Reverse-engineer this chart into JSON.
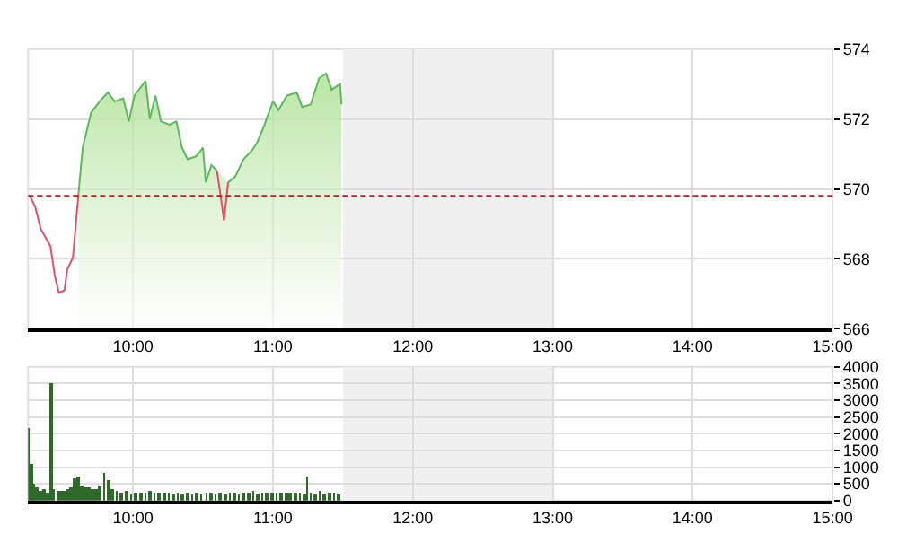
{
  "chart_data": [
    {
      "type": "area",
      "x": [
        9.26,
        9.3,
        9.34,
        9.41,
        9.44,
        9.47,
        9.51,
        9.53,
        9.57,
        9.61,
        9.64,
        9.7,
        9.76,
        9.82,
        9.87,
        9.93,
        9.97,
        10.01,
        10.09,
        10.12,
        10.16,
        10.2,
        10.26,
        10.31,
        10.35,
        10.39,
        10.45,
        10.5,
        10.52,
        10.56,
        10.6,
        10.63,
        10.65,
        10.68,
        10.73,
        10.79,
        10.85,
        10.89,
        10.94,
        11.0,
        11.04,
        11.1,
        11.17,
        11.21,
        11.27,
        11.33,
        11.38,
        11.42,
        11.48,
        11.49
      ],
      "series": [
        {
          "type": "area",
          "color": "#5cb85c",
          "values": [
            null,
            null,
            null,
            null,
            null,
            null,
            null,
            null,
            null,
            569.85,
            571.18,
            572.18,
            572.5,
            572.76,
            572.5,
            572.59,
            571.93,
            572.67,
            573.09,
            572.0,
            572.67,
            571.93,
            571.84,
            571.93,
            571.18,
            570.85,
            570.93,
            571.18,
            570.19,
            570.68,
            570.52,
            null,
            null,
            570.19,
            570.35,
            570.85,
            571.1,
            571.35,
            571.84,
            572.51,
            572.26,
            572.67,
            572.76,
            572.34,
            572.42,
            573.17,
            573.3,
            572.84,
            573.0,
            572.42
          ]
        },
        {
          "type": "line",
          "color": "#e0506a",
          "values": [
            569.82,
            569.5,
            568.86,
            568.36,
            567.53,
            567.03,
            567.1,
            567.7,
            568.03,
            569.85,
            null,
            null,
            null,
            null,
            null,
            null,
            null,
            null,
            null,
            null,
            null,
            null,
            null,
            null,
            null,
            null,
            null,
            null,
            null,
            null,
            570.52,
            569.69,
            569.1,
            570.19,
            null,
            null,
            null,
            null,
            null,
            null,
            null,
            null,
            null,
            null,
            null,
            null,
            null,
            null,
            null,
            null
          ]
        }
      ],
      "xlim": [
        9.25,
        15
      ],
      "xticks": [
        {
          "value": 10,
          "label": "10:00"
        },
        {
          "value": 11,
          "label": "11:00"
        },
        {
          "value": 12,
          "label": "12:00"
        },
        {
          "value": 13,
          "label": "13:00"
        },
        {
          "value": 14,
          "label": "14:00"
        },
        {
          "value": 15,
          "label": "15:00"
        }
      ],
      "ylim": [
        566,
        574
      ],
      "yticks": [
        566,
        568,
        570,
        572,
        574
      ],
      "ref_lines": [
        {
          "axis": "y",
          "value": 569.8,
          "color": "#ff0000",
          "line_style": "dashed"
        }
      ],
      "bands": [
        {
          "axis": "x",
          "from": 11.5,
          "to": 13,
          "color": "#f0f0f0"
        }
      ],
      "grid": true
    },
    {
      "type": "bar",
      "x": [
        9.258,
        9.275,
        9.292,
        9.317,
        9.342,
        9.367,
        9.393,
        9.414,
        9.434,
        9.46,
        9.485,
        9.51,
        9.535,
        9.56,
        9.581,
        9.606,
        9.636,
        9.661,
        9.686,
        9.711,
        9.736,
        9.762,
        9.795,
        9.824,
        9.854,
        9.887,
        9.921,
        9.954,
        9.988,
        10.021,
        10.055,
        10.089,
        10.122,
        10.155,
        10.189,
        10.223,
        10.256,
        10.29,
        10.323,
        10.357,
        10.39,
        10.424,
        10.458,
        10.491,
        10.525,
        10.558,
        10.592,
        10.625,
        10.659,
        10.692,
        10.726,
        10.759,
        10.793,
        10.827,
        10.86,
        10.894,
        10.927,
        10.961,
        10.994,
        11.028,
        11.061,
        11.095,
        11.128,
        11.162,
        11.195,
        11.229,
        11.246,
        11.271,
        11.304,
        11.338,
        11.372,
        11.405,
        11.439,
        11.472
      ],
      "values": [
        2160,
        1120,
        520,
        430,
        310,
        350,
        260,
        3540,
        380,
        310,
        280,
        300,
        350,
        430,
        690,
        740,
        480,
        400,
        430,
        380,
        350,
        450,
        810,
        600,
        380,
        300,
        230,
        280,
        200,
        230,
        260,
        250,
        300,
        240,
        220,
        260,
        230,
        210,
        240,
        200,
        230,
        210,
        250,
        190,
        230,
        260,
        210,
        240,
        200,
        230,
        250,
        210,
        260,
        230,
        280,
        210,
        250,
        230,
        270,
        240,
        250,
        260,
        220,
        240,
        230,
        200,
        730,
        230,
        180,
        290,
        200,
        260,
        220,
        180
      ],
      "color": "#2f6a2a",
      "xlim": [
        9.25,
        15
      ],
      "xticks": [
        {
          "value": 10,
          "label": "10:00"
        },
        {
          "value": 11,
          "label": "11:00"
        },
        {
          "value": 12,
          "label": "12:00"
        },
        {
          "value": 13,
          "label": "13:00"
        },
        {
          "value": 14,
          "label": "14:00"
        },
        {
          "value": 15,
          "label": "15:00"
        }
      ],
      "ylim": [
        0,
        4000
      ],
      "yticks": [
        0,
        500,
        1000,
        1500,
        2000,
        2500,
        3000,
        3500,
        4000
      ],
      "bands": [
        {
          "axis": "x",
          "from": 11.5,
          "to": 13,
          "color": "#f0f0f0"
        }
      ],
      "grid": true
    }
  ]
}
